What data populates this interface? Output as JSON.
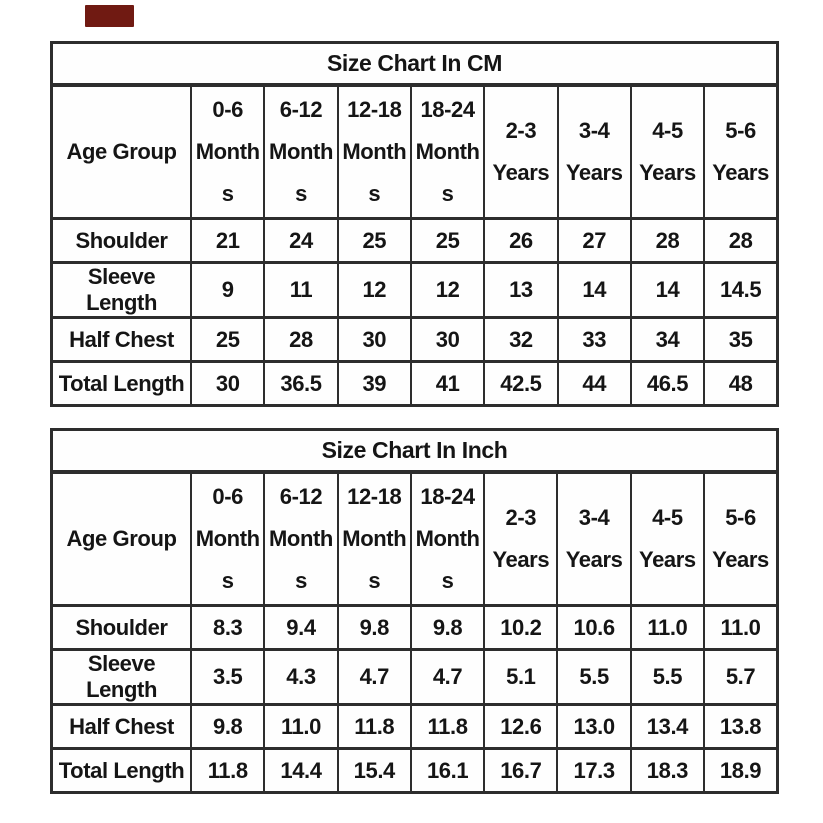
{
  "page": {
    "background": "#ffffff",
    "text_color": "#151515",
    "border_color": "#2d2d2d"
  },
  "watermark_badge": {
    "color": "#701a12"
  },
  "tables": [
    {
      "title": "Size Chart In CM",
      "corner_label": "Age Group",
      "columns": [
        [
          "0-6",
          "Month",
          "s"
        ],
        [
          "6-12",
          "Month",
          "s"
        ],
        [
          "12-18",
          "Month",
          "s"
        ],
        [
          "18-24",
          "Month",
          "s"
        ],
        [
          "2-3",
          "Years"
        ],
        [
          "3-4",
          "Years"
        ],
        [
          "4-5",
          "Years"
        ],
        [
          "5-6",
          "Years"
        ]
      ],
      "rows": [
        {
          "label": "Shoulder",
          "values": [
            "21",
            "24",
            "25",
            "25",
            "26",
            "27",
            "28",
            "28"
          ]
        },
        {
          "label": "Sleeve Length",
          "values": [
            "9",
            "11",
            "12",
            "12",
            "13",
            "14",
            "14",
            "14.5"
          ]
        },
        {
          "label": "Half Chest",
          "values": [
            "25",
            "28",
            "30",
            "30",
            "32",
            "33",
            "34",
            "35"
          ]
        },
        {
          "label": "Total Length",
          "values": [
            "30",
            "36.5",
            "39",
            "41",
            "42.5",
            "44",
            "46.5",
            "48"
          ]
        }
      ]
    },
    {
      "title": "Size Chart In Inch",
      "corner_label": "Age Group",
      "columns": [
        [
          "0-6",
          "Month",
          "s"
        ],
        [
          "6-12",
          "Month",
          "s"
        ],
        [
          "12-18",
          "Month",
          "s"
        ],
        [
          "18-24",
          "Month",
          "s"
        ],
        [
          "2-3",
          "Years"
        ],
        [
          "3-4",
          "Years"
        ],
        [
          "4-5",
          "Years"
        ],
        [
          "5-6",
          "Years"
        ]
      ],
      "rows": [
        {
          "label": "Shoulder",
          "values": [
            "8.3",
            "9.4",
            "9.8",
            "9.8",
            "10.2",
            "10.6",
            "11.0",
            "11.0"
          ]
        },
        {
          "label": "Sleeve Length",
          "values": [
            "3.5",
            "4.3",
            "4.7",
            "4.7",
            "5.1",
            "5.5",
            "5.5",
            "5.7"
          ]
        },
        {
          "label": "Half Chest",
          "values": [
            "9.8",
            "11.0",
            "11.8",
            "11.8",
            "12.6",
            "13.0",
            "13.4",
            "13.8"
          ]
        },
        {
          "label": "Total Length",
          "values": [
            "11.8",
            "14.4",
            "15.4",
            "16.1",
            "16.7",
            "17.3",
            "18.3",
            "18.9"
          ]
        }
      ]
    }
  ]
}
